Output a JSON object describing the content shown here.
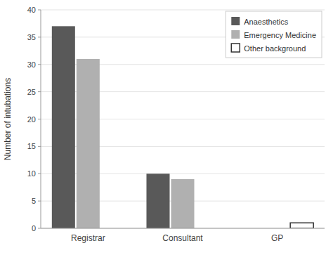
{
  "chart_data": {
    "type": "bar",
    "y_label": "Number of intubations",
    "categories": [
      "Registrar",
      "Consultant",
      "GP"
    ],
    "series": [
      {
        "name": "Anaesthetics",
        "color": "#595959",
        "values": [
          37,
          10,
          0
        ]
      },
      {
        "name": "Emergency Medicine",
        "color": "#b0b0b0",
        "values": [
          31,
          9,
          0
        ]
      },
      {
        "name": "Other background",
        "color": "#ffffff",
        "values": [
          0,
          0,
          1
        ]
      }
    ],
    "ylim": [
      0,
      40
    ],
    "yticks": [
      0,
      5,
      10,
      15,
      20,
      25,
      30,
      35,
      40
    ],
    "grid": true,
    "legend": "upper right"
  }
}
